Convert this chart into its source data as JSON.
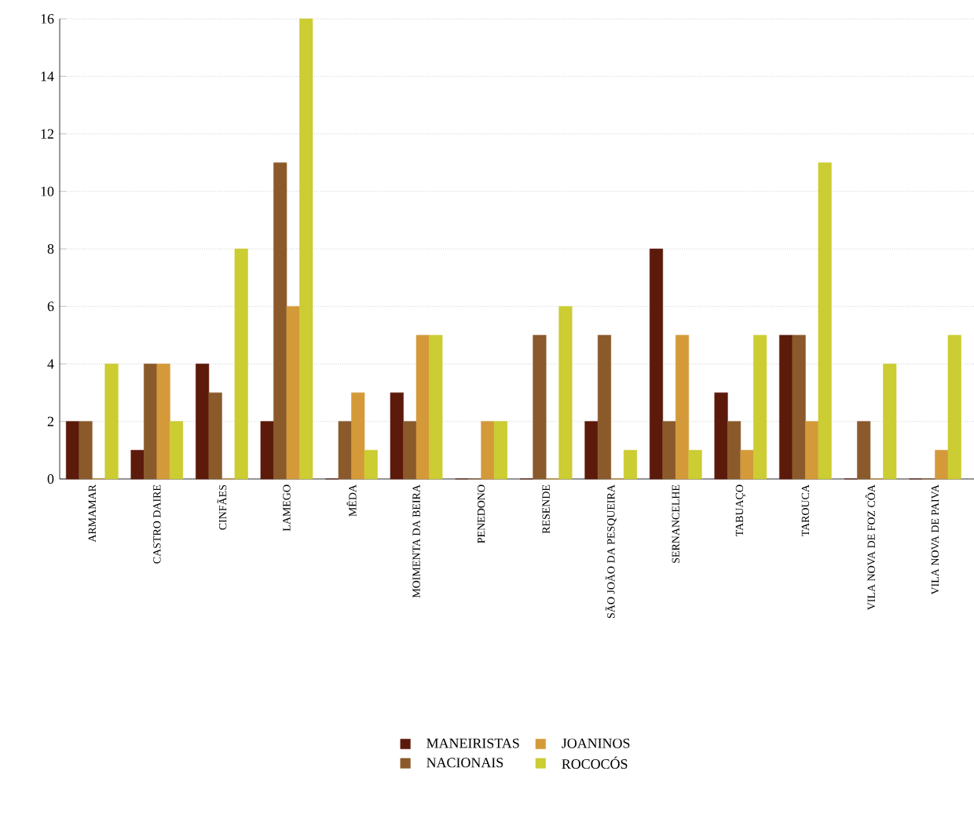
{
  "chart_data": {
    "type": "bar",
    "categories": [
      "ARMAMAR",
      "CASTRO DAIRE",
      "CINFÃES",
      "LAMEGO",
      "MÊDA",
      "MOIMENTA DA BEIRA",
      "PENEDONO",
      "RESENDE",
      "SÃO JOÃO DA PESQUEIRA",
      "SERNANCELHE",
      "TABUAÇO",
      "TAROUCA",
      "VILA NOVA DE FOZ CÔA",
      "VILA NOVA DE PAIVA"
    ],
    "series": [
      {
        "name": "MANEIRISTAS",
        "color": "#5c1a0b",
        "values": [
          2,
          1,
          4,
          2,
          0,
          3,
          0,
          0,
          2,
          8,
          3,
          5,
          0,
          0
        ]
      },
      {
        "name": "NACIONAIS",
        "color": "#8b5a2b",
        "values": [
          2,
          4,
          3,
          11,
          2,
          2,
          0,
          5,
          5,
          2,
          2,
          5,
          2,
          0
        ]
      },
      {
        "name": "JOANINOS",
        "color": "#d49a3a",
        "values": [
          0,
          4,
          0,
          6,
          3,
          5,
          2,
          0,
          0,
          5,
          1,
          2,
          0,
          1
        ]
      },
      {
        "name": "ROCOCÓS",
        "color": "#cccc33",
        "values": [
          4,
          2,
          8,
          16,
          1,
          5,
          2,
          6,
          1,
          1,
          5,
          11,
          4,
          5
        ]
      }
    ],
    "ylim": [
      0,
      16
    ],
    "yticks": [
      0,
      2,
      4,
      6,
      8,
      10,
      12,
      14,
      16
    ],
    "grid": "y",
    "legend": "bottom"
  }
}
